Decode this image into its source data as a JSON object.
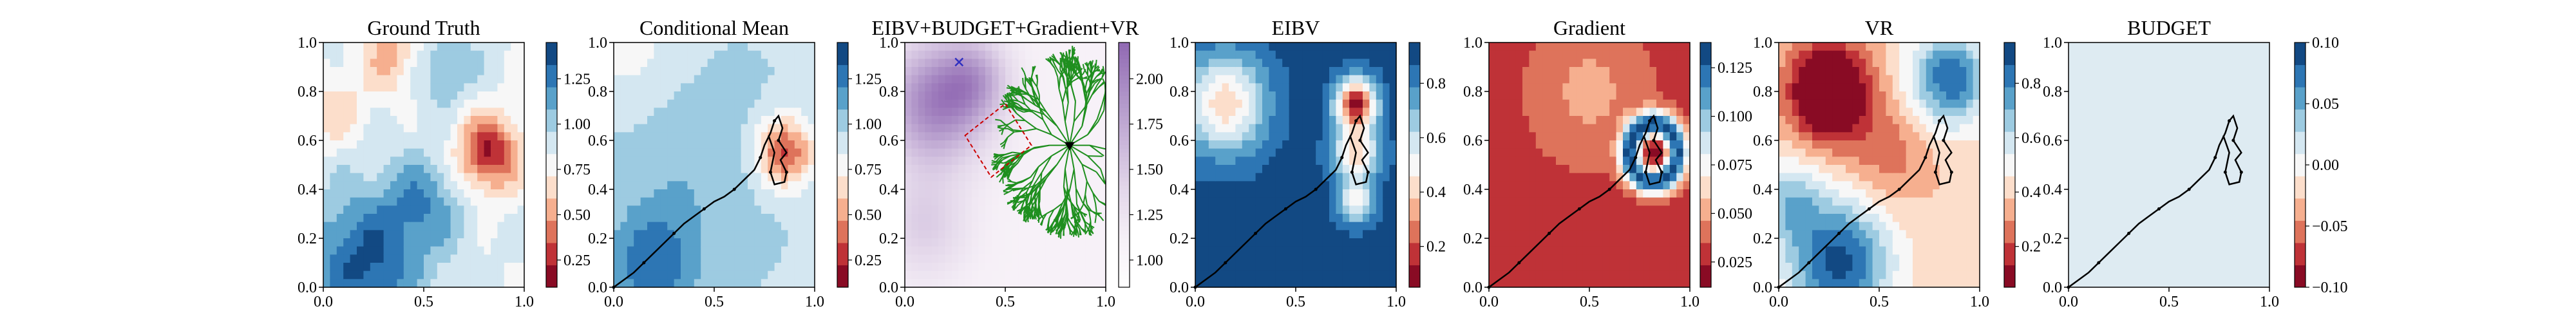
{
  "chart_data": [
    {
      "type": "heatmap",
      "title": "Ground Truth",
      "xlim": [
        0,
        1
      ],
      "ylim": [
        0,
        1
      ],
      "xticks": [
        "0.0",
        "0.5",
        "1.0"
      ],
      "yticks": [
        "0.0",
        "0.2",
        "0.4",
        "0.6",
        "0.8",
        "1.0"
      ],
      "colorbar": {
        "cmap": "RdBu",
        "range": [
          0.1,
          1.45
        ],
        "ticks": [
          0.25,
          0.5,
          0.75,
          1.0,
          1.25
        ],
        "tick_labels": [
          "0.25",
          "0.50",
          "0.75",
          "1.00",
          "1.25"
        ]
      },
      "field": "ground_truth"
    },
    {
      "type": "heatmap",
      "title": "Conditional Mean",
      "xlim": [
        0,
        1
      ],
      "ylim": [
        0,
        1
      ],
      "xticks": [
        "0.0",
        "0.5",
        "1.0"
      ],
      "yticks": [
        "0.0",
        "0.2",
        "0.4",
        "0.6",
        "0.8",
        "1.0"
      ],
      "colorbar": {
        "cmap": "RdBu",
        "range": [
          0.1,
          1.45
        ],
        "ticks": [
          0.25,
          0.5,
          0.75,
          1.0,
          1.25
        ],
        "tick_labels": [
          "0.25",
          "0.50",
          "0.75",
          "1.00",
          "1.25"
        ]
      },
      "field": "cond_mean",
      "path": true
    },
    {
      "type": "heatmap",
      "title": "EIBV+BUDGET+Gradient+VR",
      "xlim": [
        0,
        1
      ],
      "ylim": [
        0,
        1
      ],
      "xticks": [
        "0.0",
        "0.5",
        "1.0"
      ],
      "yticks": [
        "0.0",
        "0.2",
        "0.4",
        "0.6",
        "0.8",
        "1.0"
      ],
      "colorbar": {
        "cmap": "BuPu",
        "range": [
          0.85,
          2.2
        ],
        "ticks": [
          1.0,
          1.25,
          1.5,
          1.75,
          2.0
        ],
        "tick_labels": [
          "1.00",
          "1.25",
          "1.50",
          "1.75",
          "2.00"
        ]
      },
      "field": "cost",
      "tree": true,
      "start_point": [
        0.82,
        0.58
      ],
      "target_point": [
        0.27,
        0.92
      ]
    },
    {
      "type": "heatmap",
      "title": "EIBV",
      "xlim": [
        0,
        1
      ],
      "ylim": [
        0,
        1
      ],
      "xticks": [
        "0.0",
        "0.5",
        "1.0"
      ],
      "yticks": [
        "0.0",
        "0.2",
        "0.4",
        "0.6",
        "0.8",
        "1.0"
      ],
      "colorbar": {
        "cmap": "RdBu",
        "range": [
          0.05,
          0.95
        ],
        "ticks": [
          0.2,
          0.4,
          0.6,
          0.8
        ],
        "tick_labels": [
          "0.2",
          "0.4",
          "0.6",
          "0.8"
        ]
      },
      "field": "eibv",
      "path": true
    },
    {
      "type": "heatmap",
      "title": "Gradient",
      "xlim": [
        0,
        1
      ],
      "ylim": [
        0,
        1
      ],
      "xticks": [
        "0.0",
        "0.5",
        "1.0"
      ],
      "yticks": [
        "0.0",
        "0.2",
        "0.4",
        "0.6",
        "0.8",
        "1.0"
      ],
      "colorbar": {
        "cmap": "RdBu",
        "range": [
          0.012,
          0.138
        ],
        "ticks": [
          0.025,
          0.05,
          0.075,
          0.1,
          0.125
        ],
        "tick_labels": [
          "0.025",
          "0.050",
          "0.075",
          "0.100",
          "0.125"
        ]
      },
      "field": "gradient",
      "path": true
    },
    {
      "type": "heatmap",
      "title": "VR",
      "xlim": [
        0,
        1
      ],
      "ylim": [
        0,
        1
      ],
      "xticks": [
        "0.0",
        "0.5",
        "1.0"
      ],
      "yticks": [
        "0.0",
        "0.2",
        "0.4",
        "0.6",
        "0.8",
        "1.0"
      ],
      "colorbar": {
        "cmap": "RdBu",
        "range": [
          0.05,
          0.95
        ],
        "ticks": [
          0.2,
          0.4,
          0.6,
          0.8
        ],
        "tick_labels": [
          "0.2",
          "0.4",
          "0.6",
          "0.8"
        ]
      },
      "field": "vr",
      "path": true
    },
    {
      "type": "heatmap",
      "title": "BUDGET",
      "xlim": [
        0,
        1
      ],
      "ylim": [
        0,
        1
      ],
      "xticks": [
        "0.0",
        "0.5",
        "1.0"
      ],
      "yticks": [
        "0.0",
        "0.2",
        "0.4",
        "0.6",
        "0.8",
        "1.0"
      ],
      "colorbar": {
        "cmap": "RdBu",
        "range": [
          -0.1,
          0.1
        ],
        "ticks": [
          -0.1,
          -0.05,
          0.0,
          0.05,
          0.1
        ],
        "tick_labels": [
          "−0.10",
          "−0.05",
          "0.00",
          "0.05",
          "0.10"
        ]
      },
      "field": "constant",
      "path": true
    }
  ],
  "path_points": [
    [
      0.0,
      0.0
    ],
    [
      0.05,
      0.03
    ],
    [
      0.1,
      0.06
    ],
    [
      0.15,
      0.1
    ],
    [
      0.2,
      0.14
    ],
    [
      0.25,
      0.18
    ],
    [
      0.3,
      0.22
    ],
    [
      0.35,
      0.26
    ],
    [
      0.4,
      0.29
    ],
    [
      0.45,
      0.32
    ],
    [
      0.5,
      0.35
    ],
    [
      0.55,
      0.37
    ],
    [
      0.6,
      0.4
    ],
    [
      0.65,
      0.44
    ],
    [
      0.7,
      0.48
    ],
    [
      0.73,
      0.53
    ],
    [
      0.75,
      0.58
    ],
    [
      0.78,
      0.63
    ],
    [
      0.8,
      0.68
    ],
    [
      0.82,
      0.7
    ],
    [
      0.84,
      0.65
    ],
    [
      0.82,
      0.6
    ],
    [
      0.86,
      0.55
    ],
    [
      0.83,
      0.52
    ],
    [
      0.86,
      0.47
    ],
    [
      0.85,
      0.43
    ],
    [
      0.8,
      0.42
    ],
    [
      0.78,
      0.47
    ],
    [
      0.8,
      0.55
    ],
    [
      0.77,
      0.62
    ]
  ],
  "colors": {
    "path": "#000000",
    "tree": "#1f8f1f",
    "target": "#3030c0",
    "start": "#000000",
    "box": "#cc0000"
  }
}
